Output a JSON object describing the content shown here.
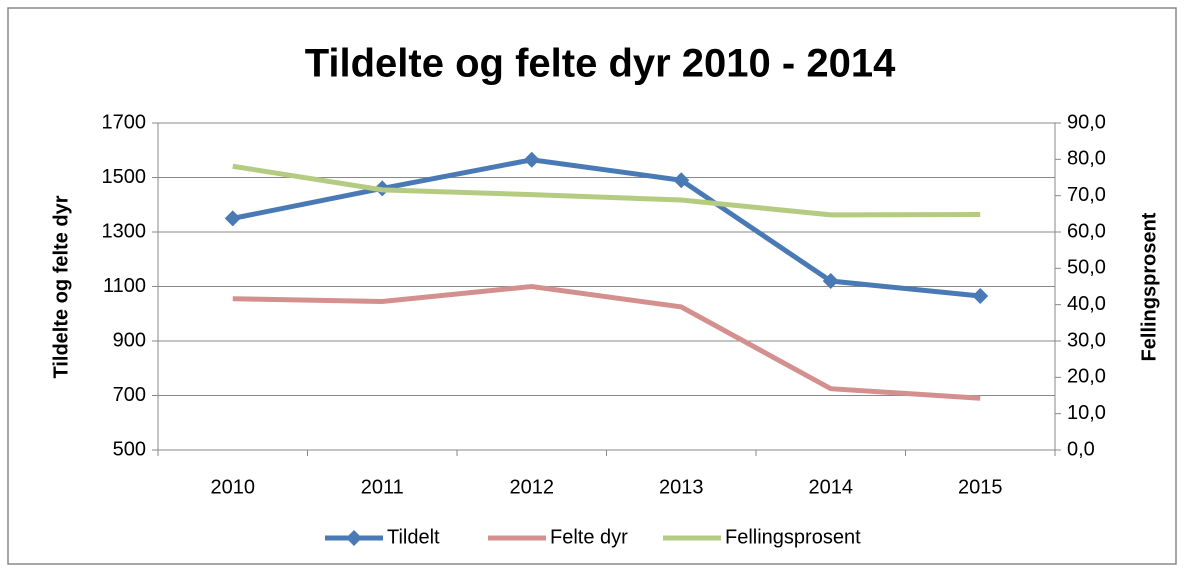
{
  "chart_data": {
    "type": "line",
    "title": "Tildelte og felte dyr 2010 - 2014",
    "y_label": "Tildelte og felte dyr",
    "y2_label": "Fellingsprosent",
    "categories": [
      "2010",
      "2011",
      "2012",
      "2013",
      "2014",
      "2015"
    ],
    "series": [
      {
        "name": "Tildelt",
        "color": "#4a7ab5",
        "marker": "diamond",
        "values": [
          1350,
          1460,
          1565,
          1490,
          1120,
          1065
        ]
      },
      {
        "name": "Felte dyr",
        "color": "#d4908e",
        "values": [
          1055,
          1045,
          1100,
          1025,
          725,
          690
        ]
      },
      {
        "name": "Fellingsprosent",
        "color": "#b3cc82",
        "axis": "y2",
        "values": [
          78.1,
          71.6,
          70.3,
          68.8,
          64.7,
          64.8
        ]
      }
    ],
    "ylim": [
      500,
      1700
    ],
    "yticks": [
      500,
      700,
      900,
      1100,
      1300,
      1500,
      1700
    ],
    "y2lim": [
      0,
      90
    ],
    "y2ticks": [
      {
        "value": 0,
        "label": "0,0"
      },
      {
        "value": 10,
        "label": "10,0"
      },
      {
        "value": 20,
        "label": "20,0"
      },
      {
        "value": 30,
        "label": "30,0"
      },
      {
        "value": 40,
        "label": "40,0"
      },
      {
        "value": 50,
        "label": "50,0"
      },
      {
        "value": 60,
        "label": "60,0"
      },
      {
        "value": 70,
        "label": "70,0"
      },
      {
        "value": 80,
        "label": "80,0"
      },
      {
        "value": 90,
        "label": "90,0"
      }
    ],
    "grid": true,
    "legend": "bottom"
  }
}
